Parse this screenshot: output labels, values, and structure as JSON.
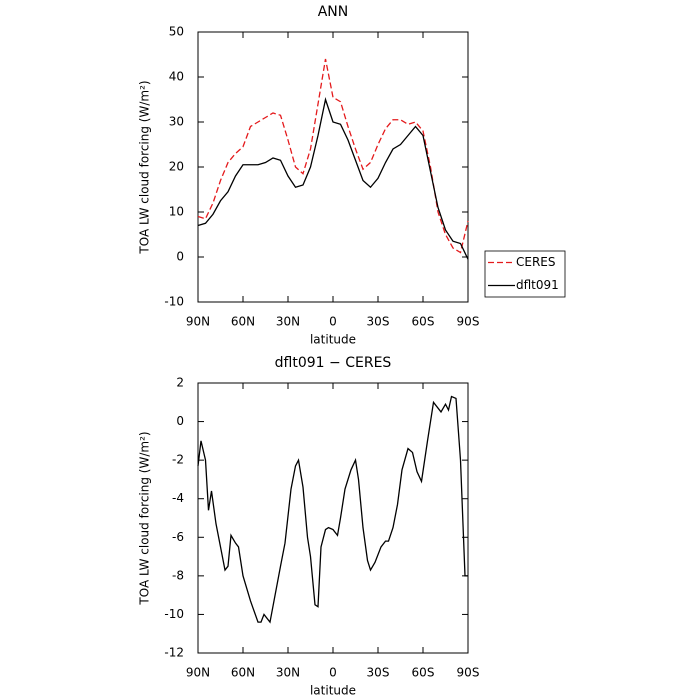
{
  "chart_data": [
    {
      "type": "line",
      "title": "ANN",
      "x_label": "latitude",
      "y_label": "TOA LW cloud forcing (W/m²)",
      "x": [
        90,
        85,
        80,
        75,
        70,
        65,
        60,
        55,
        50,
        45,
        40,
        35,
        30,
        25,
        20,
        15,
        10,
        5,
        0,
        -5,
        -10,
        -15,
        -20,
        -25,
        -30,
        -35,
        -40,
        -45,
        -50,
        -55,
        -60,
        -65,
        -70,
        -75,
        -80,
        -85,
        -90
      ],
      "series": [
        {
          "name": "CERES",
          "color": "#e41a1c",
          "line_style": "dashed",
          "values": [
            9,
            8.5,
            12,
            17,
            21,
            23,
            24.5,
            29,
            30,
            31,
            32,
            31.5,
            26,
            20,
            18.5,
            24,
            34,
            44,
            35.5,
            34.5,
            29,
            24,
            19.5,
            21,
            25,
            28.5,
            30.5,
            30.5,
            29.5,
            30,
            28,
            20,
            10,
            5,
            2,
            1,
            8
          ]
        },
        {
          "name": "dflt091",
          "color": "#000000",
          "line_style": "solid",
          "values": [
            7,
            7.5,
            9.5,
            12.5,
            14.5,
            18,
            20.5,
            20.5,
            20.5,
            21,
            22,
            21.5,
            18,
            15.5,
            16,
            20,
            27,
            35,
            30,
            29.5,
            26,
            21.5,
            17,
            15.5,
            17.5,
            21,
            24,
            25,
            27,
            29,
            27,
            19,
            11,
            6,
            3.5,
            3,
            -0.5
          ]
        }
      ],
      "xlim": [
        90,
        -90
      ],
      "xticks": [
        {
          "value": 90,
          "label": "90N"
        },
        {
          "value": 60,
          "label": "60N"
        },
        {
          "value": 30,
          "label": "30N"
        },
        0,
        {
          "value": -30,
          "label": "30S"
        },
        {
          "value": -60,
          "label": "60S"
        },
        {
          "value": -90,
          "label": "90S"
        }
      ],
      "ylim": [
        -10,
        50
      ],
      "yticks": [
        -10,
        0,
        10,
        20,
        30,
        40,
        50
      ],
      "legend": "right"
    },
    {
      "type": "line",
      "title": "dflt091 − CERES",
      "x_label": "latitude",
      "y_label": "TOA LW cloud forcing (W/m²)",
      "x": [
        90,
        88,
        85,
        83,
        81,
        78,
        75,
        72,
        70,
        68,
        65,
        63,
        60,
        55,
        50,
        48,
        46,
        42,
        35,
        32,
        28,
        25,
        23,
        20,
        17,
        15,
        12,
        10,
        8,
        5,
        3,
        0,
        -3,
        -5,
        -8,
        -12,
        -15,
        -17,
        -20,
        -23,
        -25,
        -28,
        -32,
        -35,
        -37,
        -40,
        -43,
        -46,
        -50,
        -53,
        -56,
        -59,
        -63,
        -67,
        -72,
        -75,
        -77,
        -79,
        -82,
        -85,
        -87,
        -88,
        -90
      ],
      "series": [
        {
          "name": "dflt091 − CERES",
          "color": "#000000",
          "line_style": "solid",
          "values": [
            -2.3,
            -1,
            -2,
            -4.6,
            -3.6,
            -5.3,
            -6.5,
            -7.7,
            -7.5,
            -5.9,
            -6.3,
            -6.5,
            -8,
            -9.3,
            -10.4,
            -10.4,
            -10,
            -10.4,
            -7.5,
            -6.3,
            -3.5,
            -2.3,
            -2,
            -3.4,
            -6,
            -7,
            -9.5,
            -9.6,
            -6.5,
            -5.6,
            -5.5,
            -5.6,
            -5.9,
            -5,
            -3.5,
            -2.5,
            -2,
            -3,
            -5.5,
            -7.2,
            -7.7,
            -7.3,
            -6.5,
            -6.2,
            -6.2,
            -5.5,
            -4.3,
            -2.5,
            -1.4,
            -1.6,
            -2.6,
            -3.1,
            -1,
            1,
            0.5,
            0.9,
            0.6,
            1.3,
            1.2,
            -2,
            -6,
            -8,
            -8
          ]
        }
      ],
      "xlim": [
        90,
        -90
      ],
      "xticks": [
        {
          "value": 90,
          "label": "90N"
        },
        {
          "value": 60,
          "label": "60N"
        },
        {
          "value": 30,
          "label": "30N"
        },
        0,
        {
          "value": -30,
          "label": "30S"
        },
        {
          "value": -60,
          "label": "60S"
        },
        {
          "value": -90,
          "label": "90S"
        }
      ],
      "ylim": [
        -12,
        2
      ],
      "yticks": [
        -12,
        -10,
        -8,
        -6,
        -4,
        -2,
        0,
        2
      ]
    }
  ]
}
